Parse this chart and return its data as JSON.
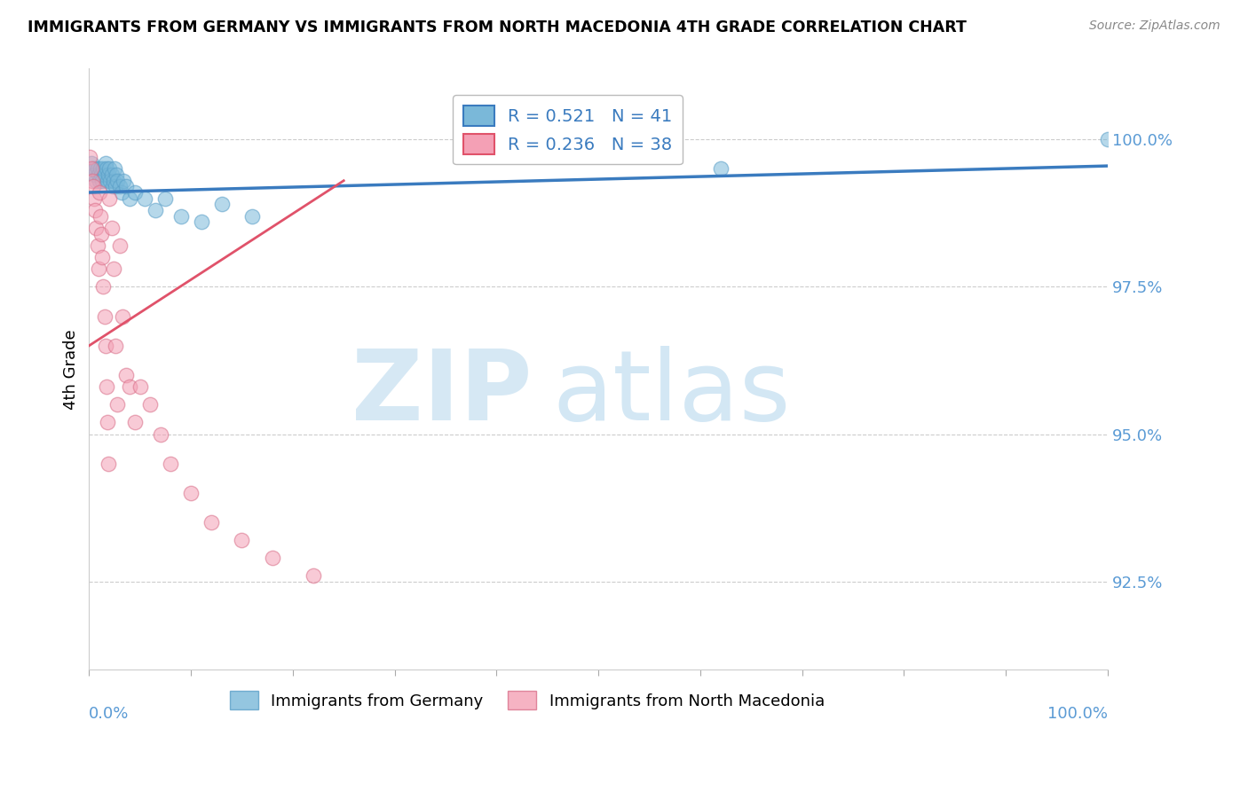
{
  "title": "IMMIGRANTS FROM GERMANY VS IMMIGRANTS FROM NORTH MACEDONIA 4TH GRADE CORRELATION CHART",
  "source": "Source: ZipAtlas.com",
  "ylabel": "4th Grade",
  "y_ticks": [
    92.5,
    95.0,
    97.5,
    100.0
  ],
  "y_tick_labels": [
    "92.5%",
    "95.0%",
    "97.5%",
    "100.0%"
  ],
  "x_range": [
    0.0,
    1.0
  ],
  "y_range": [
    91.0,
    101.2
  ],
  "blue_R": 0.521,
  "blue_N": 41,
  "pink_R": 0.236,
  "pink_N": 38,
  "blue_color": "#7ab8d9",
  "pink_color": "#f4a0b5",
  "blue_line_color": "#3a7bbf",
  "pink_line_color": "#e0526a",
  "grid_color": "#cccccc",
  "tick_label_color": "#5b9bd5",
  "blue_x": [
    0.002,
    0.004,
    0.005,
    0.006,
    0.007,
    0.008,
    0.009,
    0.01,
    0.011,
    0.012,
    0.013,
    0.014,
    0.015,
    0.016,
    0.017,
    0.018,
    0.019,
    0.02,
    0.021,
    0.022,
    0.023,
    0.024,
    0.025,
    0.026,
    0.027,
    0.028,
    0.03,
    0.032,
    0.034,
    0.036,
    0.04,
    0.045,
    0.055,
    0.065,
    0.075,
    0.09,
    0.11,
    0.13,
    0.16,
    0.62,
    1.0
  ],
  "blue_y": [
    99.6,
    99.5,
    99.4,
    99.5,
    99.3,
    99.5,
    99.4,
    99.3,
    99.5,
    99.4,
    99.3,
    99.5,
    99.4,
    99.6,
    99.5,
    99.3,
    99.4,
    99.5,
    99.3,
    99.4,
    99.2,
    99.3,
    99.5,
    99.2,
    99.4,
    99.3,
    99.2,
    99.1,
    99.3,
    99.2,
    99.0,
    99.1,
    99.0,
    98.8,
    99.0,
    98.7,
    98.6,
    98.9,
    98.7,
    99.5,
    100.0
  ],
  "pink_x": [
    0.001,
    0.002,
    0.003,
    0.004,
    0.005,
    0.006,
    0.007,
    0.008,
    0.009,
    0.01,
    0.011,
    0.012,
    0.013,
    0.014,
    0.015,
    0.016,
    0.017,
    0.018,
    0.019,
    0.02,
    0.022,
    0.024,
    0.026,
    0.028,
    0.03,
    0.033,
    0.036,
    0.04,
    0.045,
    0.05,
    0.06,
    0.07,
    0.08,
    0.1,
    0.12,
    0.15,
    0.18,
    0.22
  ],
  "pink_y": [
    99.7,
    99.5,
    99.3,
    99.2,
    99.0,
    98.8,
    98.5,
    98.2,
    97.8,
    99.1,
    98.7,
    98.4,
    98.0,
    97.5,
    97.0,
    96.5,
    95.8,
    95.2,
    94.5,
    99.0,
    98.5,
    97.8,
    96.5,
    95.5,
    98.2,
    97.0,
    96.0,
    95.8,
    95.2,
    95.8,
    95.5,
    95.0,
    94.5,
    94.0,
    93.5,
    93.2,
    92.9,
    92.6
  ]
}
